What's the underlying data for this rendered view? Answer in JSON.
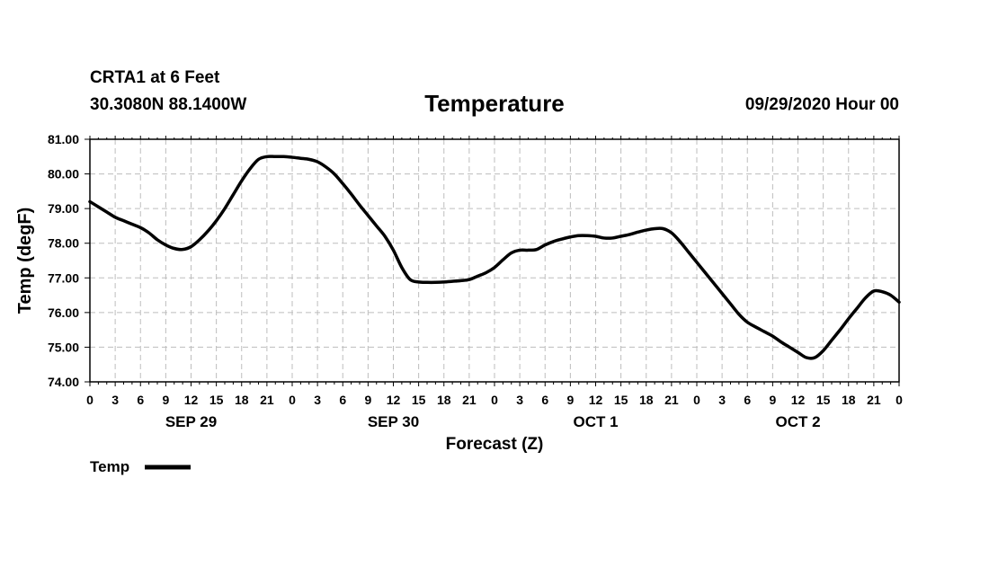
{
  "header": {
    "station": "CRTA1 at 6 Feet",
    "coordinates": "30.3080N 88.1400W",
    "title": "Temperature",
    "run_time": "09/29/2020 Hour 00"
  },
  "chart_data": {
    "type": "line",
    "title": "Temperature",
    "xlabel": "Forecast (Z)",
    "ylabel": "Temp (degF)",
    "ylim": [
      74,
      81
    ],
    "y_ticks": [
      "74.00",
      "75.00",
      "76.00",
      "77.00",
      "78.00",
      "79.00",
      "80.00",
      "81.00"
    ],
    "xlim": [
      0,
      96
    ],
    "x_ticks": [
      "0",
      "3",
      "6",
      "9",
      "12",
      "15",
      "18",
      "21",
      "0",
      "3",
      "6",
      "9",
      "12",
      "15",
      "18",
      "21",
      "0",
      "3",
      "6",
      "9",
      "12",
      "15",
      "18",
      "21",
      "0",
      "3",
      "6",
      "9",
      "12",
      "15",
      "18",
      "21",
      "0"
    ],
    "day_labels": [
      {
        "label": "SEP 29",
        "hour": 12
      },
      {
        "label": "SEP 30",
        "hour": 36
      },
      {
        "label": "OCT 1",
        "hour": 60
      },
      {
        "label": "OCT 2",
        "hour": 84
      }
    ],
    "grid": true,
    "legend": "bottom-left",
    "series": [
      {
        "name": "Temp",
        "color": "#000000",
        "x": [
          0,
          1,
          2,
          3,
          4,
          5,
          6,
          7,
          8,
          9,
          10,
          11,
          12,
          13,
          14,
          15,
          16,
          17,
          18,
          19,
          20,
          21,
          22,
          23,
          24,
          25,
          26,
          27,
          28,
          29,
          30,
          31,
          32,
          33,
          34,
          35,
          36,
          37,
          38,
          39,
          40,
          41,
          42,
          43,
          44,
          45,
          46,
          47,
          48,
          49,
          50,
          51,
          52,
          53,
          54,
          55,
          56,
          57,
          58,
          59,
          60,
          61,
          62,
          63,
          64,
          65,
          66,
          67,
          68,
          69,
          70,
          71,
          72,
          73,
          74,
          75,
          76,
          77,
          78,
          79,
          80,
          81,
          82,
          83,
          84,
          85,
          86,
          87,
          88,
          89,
          90,
          91,
          92,
          93,
          94,
          95,
          96
        ],
        "values": [
          79.2,
          79.05,
          78.9,
          78.75,
          78.65,
          78.55,
          78.45,
          78.3,
          78.1,
          77.95,
          77.85,
          77.82,
          77.9,
          78.1,
          78.35,
          78.65,
          79.0,
          79.4,
          79.8,
          80.15,
          80.42,
          80.5,
          80.5,
          80.5,
          80.48,
          80.45,
          80.42,
          80.35,
          80.2,
          80.0,
          79.72,
          79.42,
          79.1,
          78.8,
          78.5,
          78.2,
          77.8,
          77.3,
          76.95,
          76.88,
          76.87,
          76.87,
          76.88,
          76.9,
          76.92,
          76.95,
          77.05,
          77.15,
          77.3,
          77.52,
          77.72,
          77.8,
          77.8,
          77.82,
          77.95,
          78.05,
          78.12,
          78.18,
          78.22,
          78.22,
          78.2,
          78.15,
          78.15,
          78.2,
          78.25,
          78.32,
          78.38,
          78.42,
          78.42,
          78.3,
          78.05,
          77.75,
          77.45,
          77.15,
          76.85,
          76.55,
          76.25,
          75.95,
          75.72,
          75.58,
          75.45,
          75.32,
          75.15,
          75.0,
          74.85,
          74.7,
          74.7,
          74.9,
          75.2,
          75.5,
          75.82,
          76.12,
          76.42,
          76.62,
          76.6,
          76.5,
          76.3
        ]
      }
    ]
  },
  "legend": {
    "label": "Temp"
  }
}
